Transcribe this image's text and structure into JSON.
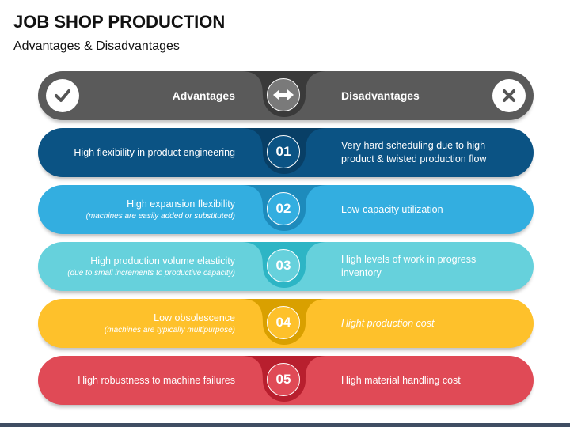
{
  "title": "JOB SHOP PRODUCTION",
  "subtitle": "Advantages & Disadvantages",
  "header": {
    "left": "Advantages",
    "right": "Disadvantages",
    "left_icon": "check-icon",
    "center_icon": "double-arrow-icon",
    "right_icon": "x-icon",
    "color": "#5a5a5a",
    "dark": "#3a3a3a"
  },
  "rows": [
    {
      "num": "01",
      "adv": "High flexibility in product engineering",
      "adv_note": null,
      "dis": "Very hard scheduling due to high product & twisted production flow",
      "color": "#0b5384",
      "dark": "#083f66"
    },
    {
      "num": "02",
      "adv": "High expansion flexibility",
      "adv_note": "(machines are easily added or substituted)",
      "dis": "Low-capacity utilization",
      "color": "#33aee0",
      "dark": "#1d8bbc"
    },
    {
      "num": "03",
      "adv": "High production volume elasticity",
      "adv_note": "(due to small increments to productive capacity)",
      "dis": "High levels of work in progress inventory",
      "color": "#66d1dc",
      "dark": "#2db5c5"
    },
    {
      "num": "04",
      "adv": "Low obsolescence",
      "adv_note": "(machines are typically multipurpose)",
      "dis": "Hight production cost",
      "color": "#fec12b",
      "dark": "#d9a000"
    },
    {
      "num": "05",
      "adv": "High robustness to machine failures",
      "adv_note": null,
      "dis": "High material handling cost",
      "color": "#e04a56",
      "dark": "#b81f2e"
    }
  ]
}
